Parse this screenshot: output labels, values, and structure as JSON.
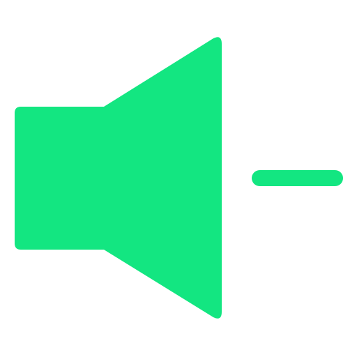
{
  "icon": {
    "name": "volume-down-icon",
    "accent_color": "#13E681"
  }
}
